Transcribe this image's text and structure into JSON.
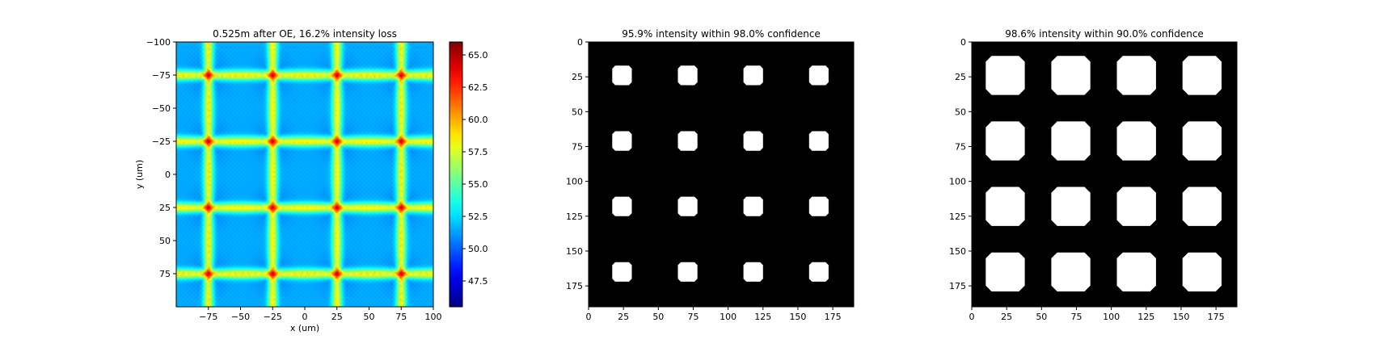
{
  "chart_data": [
    {
      "type": "heatmap",
      "title": "0.525m after OE, 16.2% intensity loss",
      "xlabel": "x (um)",
      "ylabel": "y (um)",
      "xlim": [
        -100,
        100
      ],
      "ylim": [
        100,
        -100
      ],
      "x_ticks": [
        -75,
        -50,
        -25,
        0,
        25,
        50,
        75,
        100
      ],
      "y_ticks": [
        -100,
        -75,
        -50,
        -25,
        0,
        25,
        50,
        75
      ],
      "x_tick_labels": [
        "−75",
        "−50",
        "−25",
        "0",
        "25",
        "50",
        "75",
        "100"
      ],
      "y_tick_labels": [
        "−100",
        "−75",
        "−50",
        "−25",
        "0",
        "25",
        "50",
        "75"
      ],
      "colormap": "jet",
      "colorbar": {
        "range": [
          45.5,
          66.0
        ],
        "ticks": [
          47.5,
          50.0,
          52.5,
          55.0,
          57.5,
          60.0,
          62.5,
          65.0
        ],
        "tick_labels": [
          "47.5",
          "50.0",
          "52.5",
          "55.0",
          "57.5",
          "60.0",
          "62.5",
          "65.0"
        ]
      },
      "spot_positions_um": [
        -75,
        -25,
        25,
        75
      ],
      "values_summary": {
        "peak_at_spots": 65.5,
        "along_grid_lines": 58.5,
        "background": 51.5,
        "cell_centers": 50.5
      }
    },
    {
      "type": "heatmap",
      "title": "95.9% intensity within 98.0% confidence",
      "xlim": [
        0,
        190
      ],
      "ylim": [
        190,
        0
      ],
      "x_ticks": [
        0,
        25,
        50,
        75,
        100,
        125,
        150,
        175
      ],
      "y_ticks": [
        0,
        25,
        50,
        75,
        100,
        125,
        150,
        175
      ],
      "x_tick_labels": [
        "0",
        "25",
        "50",
        "75",
        "100",
        "125",
        "150",
        "175"
      ],
      "y_tick_labels": [
        "0",
        "25",
        "50",
        "75",
        "100",
        "125",
        "150",
        "175"
      ],
      "colors": {
        "background": "#000000",
        "mask": "#ffffff"
      },
      "spot_centers": [
        24,
        71,
        118,
        165
      ],
      "spot_diameter": 14
    },
    {
      "type": "heatmap",
      "title": "98.6% intensity within 90.0% confidence",
      "xlim": [
        0,
        190
      ],
      "ylim": [
        190,
        0
      ],
      "x_ticks": [
        0,
        25,
        50,
        75,
        100,
        125,
        150,
        175
      ],
      "y_ticks": [
        0,
        25,
        50,
        75,
        100,
        125,
        150,
        175
      ],
      "x_tick_labels": [
        "0",
        "25",
        "50",
        "75",
        "100",
        "125",
        "150",
        "175"
      ],
      "y_tick_labels": [
        "0",
        "25",
        "50",
        "75",
        "100",
        "125",
        "150",
        "175"
      ],
      "colors": {
        "background": "#000000",
        "mask": "#ffffff"
      },
      "spot_centers": [
        24,
        71,
        118,
        165
      ],
      "spot_diameter": 28
    }
  ]
}
